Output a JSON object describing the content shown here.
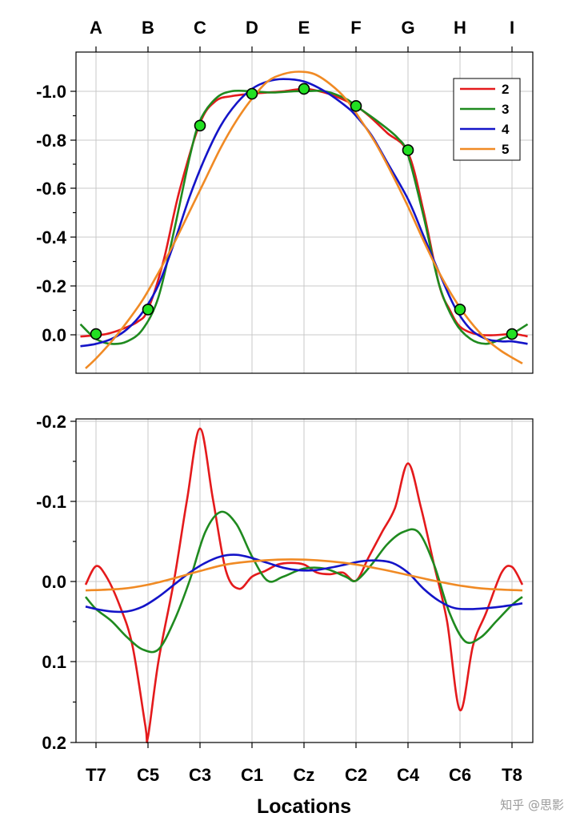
{
  "watermark": "知乎 @思影",
  "chart_data": [
    {
      "type": "line",
      "top_categories": [
        "A",
        "B",
        "C",
        "D",
        "E",
        "F",
        "G",
        "H",
        "I"
      ],
      "ylim": [
        -1.15,
        0.16
      ],
      "yaxis_inverted": true,
      "y_ticks": [
        "-1.0",
        "-0.8",
        "-0.6",
        "-0.4",
        "-0.2",
        "0.0"
      ],
      "grid": true,
      "legend_position": "top-right",
      "series": [
        {
          "name": "2",
          "color": "#e41a1c",
          "x": [
            -0.3,
            0,
            0.2,
            0.5,
            0.8,
            1,
            1.3,
            1.6,
            2,
            2.3,
            2.6,
            3,
            3.3,
            3.6,
            4,
            4.3,
            4.6,
            5,
            5.3,
            5.6,
            6,
            6.3,
            6.6,
            6.8,
            7,
            7.3,
            7.6,
            8,
            8.2,
            8.3
          ],
          "y": [
            0.01,
            0.005,
            0,
            -0.02,
            -0.05,
            -0.1,
            -0.3,
            -0.58,
            -0.86,
            -0.95,
            -0.97,
            -0.98,
            -0.985,
            -0.99,
            -1.0,
            -0.99,
            -0.97,
            -0.93,
            -0.88,
            -0.82,
            -0.74,
            -0.5,
            -0.2,
            -0.1,
            -0.03,
            0,
            0.005,
            0,
            0.005,
            0.01
          ]
        },
        {
          "name": "3",
          "color": "#1f8a1f",
          "x": [
            -0.3,
            0,
            0.3,
            0.6,
            0.9,
            1.2,
            1.5,
            1.8,
            2,
            2.3,
            2.6,
            3,
            3.4,
            3.8,
            4,
            4.4,
            4.8,
            5,
            5.4,
            5.8,
            6,
            6.3,
            6.6,
            6.9,
            7.2,
            7.5,
            7.8,
            8,
            8.3
          ],
          "y": [
            -0.04,
            0.02,
            0.04,
            0.03,
            -0.02,
            -0.15,
            -0.42,
            -0.72,
            -0.87,
            -0.96,
            -0.99,
            -0.99,
            -0.985,
            -0.99,
            -0.99,
            -0.99,
            -0.96,
            -0.93,
            -0.87,
            -0.8,
            -0.73,
            -0.48,
            -0.2,
            -0.05,
            0.02,
            0.04,
            0.02,
            0.0,
            -0.04
          ]
        },
        {
          "name": "4",
          "color": "#1414c8",
          "x": [
            -0.3,
            0,
            0.3,
            0.6,
            0.9,
            1.2,
            1.5,
            1.8,
            2.1,
            2.4,
            2.7,
            3,
            3.3,
            3.6,
            4,
            4.4,
            4.8,
            5,
            5.3,
            5.6,
            6,
            6.3,
            6.6,
            6.9,
            7.2,
            7.5,
            7.8,
            8,
            8.3
          ],
          "y": [
            0.05,
            0.04,
            0.02,
            -0.02,
            -0.09,
            -0.2,
            -0.37,
            -0.56,
            -0.72,
            -0.85,
            -0.94,
            -1.0,
            -1.03,
            -1.04,
            -1.03,
            -0.99,
            -0.93,
            -0.89,
            -0.81,
            -0.7,
            -0.55,
            -0.4,
            -0.25,
            -0.11,
            -0.02,
            0.02,
            0.03,
            0.03,
            0.04
          ]
        },
        {
          "name": "5",
          "color": "#f08a24",
          "x": [
            -0.2,
            0,
            0.3,
            0.6,
            0.9,
            1.2,
            1.5,
            1.8,
            2.1,
            2.4,
            2.7,
            3,
            3.3,
            3.6,
            3.9,
            4.2,
            4.5,
            4.8,
            5.1,
            5.4,
            5.7,
            6,
            6.3,
            6.6,
            6.9,
            7.2,
            7.5,
            7.8,
            8.2
          ],
          "y": [
            0.14,
            0.1,
            0.03,
            -0.05,
            -0.14,
            -0.25,
            -0.37,
            -0.5,
            -0.63,
            -0.76,
            -0.87,
            -0.96,
            -1.03,
            -1.06,
            -1.07,
            -1.06,
            -1.02,
            -0.96,
            -0.87,
            -0.77,
            -0.65,
            -0.52,
            -0.38,
            -0.25,
            -0.14,
            -0.05,
            0.02,
            0.07,
            0.12
          ]
        },
        {
          "name": "",
          "kind": "markers",
          "color": "#22e022",
          "x": [
            0,
            1,
            2,
            3,
            4,
            5,
            6,
            7,
            8
          ],
          "y": [
            0.0,
            -0.1,
            -0.85,
            -0.98,
            -1.0,
            -0.93,
            -0.75,
            -0.1,
            0.0
          ]
        }
      ]
    },
    {
      "type": "line",
      "categories": [
        "T7",
        "C5",
        "C3",
        "C1",
        "Cz",
        "C2",
        "C4",
        "C6",
        "T8"
      ],
      "xlabel": "Locations",
      "ylim": [
        -0.2,
        0.2
      ],
      "yaxis_inverted": true,
      "y_ticks": [
        "-0.2",
        "-0.1",
        "0.0",
        "0.1",
        "0.2"
      ],
      "grid": true,
      "series": [
        {
          "name": "2",
          "color": "#e41a1c",
          "x": [
            -0.2,
            0,
            0.2,
            0.45,
            0.7,
            0.95,
            1.0,
            1.2,
            1.5,
            1.75,
            2,
            2.25,
            2.5,
            2.75,
            3,
            3.25,
            3.5,
            3.75,
            4,
            4.25,
            4.5,
            4.75,
            5,
            5.25,
            5.5,
            5.75,
            6,
            6.25,
            6.5,
            6.75,
            7,
            7.25,
            7.5,
            7.8,
            8,
            8.2
          ],
          "y": [
            0.005,
            -0.018,
            -0.005,
            0.03,
            0.08,
            0.18,
            0.193,
            0.1,
            0.0,
            -0.1,
            -0.188,
            -0.1,
            -0.012,
            0.01,
            -0.005,
            -0.012,
            -0.02,
            -0.022,
            -0.02,
            -0.01,
            -0.008,
            -0.01,
            0.0,
            -0.03,
            -0.06,
            -0.09,
            -0.145,
            -0.09,
            -0.02,
            0.05,
            0.16,
            0.08,
            0.04,
            -0.01,
            -0.017,
            0.005
          ]
        },
        {
          "name": "3",
          "color": "#1f8a1f",
          "x": [
            -0.2,
            0,
            0.3,
            0.6,
            0.9,
            1.2,
            1.5,
            1.8,
            2.1,
            2.4,
            2.7,
            3,
            3.3,
            3.6,
            4,
            4.4,
            4.8,
            5,
            5.3,
            5.6,
            5.9,
            6.2,
            6.5,
            6.8,
            7.1,
            7.4,
            7.7,
            8,
            8.2
          ],
          "y": [
            0.02,
            0.035,
            0.05,
            0.07,
            0.085,
            0.085,
            0.05,
            0.0,
            -0.06,
            -0.085,
            -0.07,
            -0.03,
            0.0,
            -0.005,
            -0.015,
            -0.015,
            -0.005,
            0.0,
            -0.02,
            -0.045,
            -0.06,
            -0.06,
            -0.02,
            0.04,
            0.075,
            0.07,
            0.05,
            0.03,
            0.02
          ]
        },
        {
          "name": "4",
          "color": "#1414c8",
          "x": [
            -0.2,
            0,
            0.3,
            0.6,
            0.9,
            1.2,
            1.5,
            1.8,
            2.1,
            2.4,
            2.7,
            3,
            3.3,
            3.6,
            3.9,
            4.2,
            4.5,
            4.8,
            5.1,
            5.4,
            5.7,
            6,
            6.3,
            6.6,
            6.9,
            7.2,
            7.5,
            7.8,
            8.2
          ],
          "y": [
            0.032,
            0.035,
            0.038,
            0.038,
            0.032,
            0.02,
            0.005,
            -0.01,
            -0.022,
            -0.03,
            -0.032,
            -0.028,
            -0.022,
            -0.016,
            -0.013,
            -0.013,
            -0.016,
            -0.02,
            -0.024,
            -0.025,
            -0.022,
            -0.01,
            0.01,
            0.025,
            0.034,
            0.035,
            0.034,
            0.032,
            0.028
          ]
        },
        {
          "name": "5",
          "color": "#f08a24",
          "x": [
            -0.2,
            0.5,
            1,
            1.5,
            2,
            2.5,
            3,
            3.5,
            4,
            4.5,
            5,
            5.5,
            6,
            6.5,
            7,
            7.5,
            8.2
          ],
          "y": [
            0.012,
            0.01,
            0.005,
            -0.003,
            -0.012,
            -0.02,
            -0.024,
            -0.026,
            -0.026,
            -0.024,
            -0.02,
            -0.014,
            -0.007,
            0.0,
            0.006,
            0.01,
            0.012
          ]
        }
      ]
    }
  ]
}
